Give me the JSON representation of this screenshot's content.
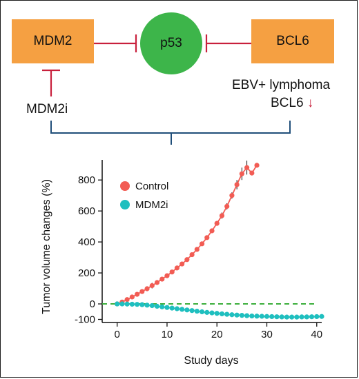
{
  "diagram": {
    "nodes": {
      "mdm2": "MDM2",
      "p53": "p53",
      "bcl6": "BCL6"
    },
    "labels": {
      "mdm2i": "MDM2i",
      "ebv": "EBV+ lymphoma",
      "bcl6_down": "BCL6",
      "down_arrow": "↓"
    },
    "colors": {
      "box": "#f5a042",
      "circle": "#3db54a",
      "inhibit": "#c8203c",
      "bracket": "#1f4e79"
    }
  },
  "chart_data": {
    "type": "line",
    "xlabel": "Study days",
    "ylabel": "Tumor volume changes (%)",
    "xlim": [
      -3,
      41
    ],
    "ylim": [
      -120,
      930
    ],
    "xticks": [
      0,
      10,
      20,
      30,
      40
    ],
    "yticks": [
      -100,
      0,
      200,
      400,
      600,
      800
    ],
    "legend_position": "top-left",
    "reference_line": {
      "y": 0,
      "style": "dashed",
      "color": "#3aae3a"
    },
    "series": [
      {
        "name": "Control",
        "color": "#f25c54",
        "x": [
          0,
          1,
          2,
          3,
          4,
          5,
          6,
          7,
          8,
          9,
          10,
          11,
          12,
          13,
          14,
          15,
          16,
          17,
          18,
          19,
          20,
          21,
          22,
          23,
          24,
          25,
          26,
          27,
          28
        ],
        "y": [
          0,
          12,
          28,
          45,
          62,
          80,
          98,
          118,
          138,
          160,
          182,
          206,
          232,
          258,
          286,
          318,
          352,
          388,
          428,
          472,
          520,
          570,
          630,
          700,
          770,
          840,
          880,
          845,
          895
        ],
        "error": [
          0,
          6,
          8,
          10,
          12,
          14,
          16,
          18,
          8,
          8,
          8,
          8,
          8,
          8,
          8,
          8,
          8,
          8,
          8,
          10,
          12,
          20,
          20,
          20,
          30,
          40,
          45,
          10,
          5
        ]
      },
      {
        "name": "MDM2i",
        "color": "#1fbfbf",
        "x": [
          0,
          1,
          2,
          3,
          4,
          5,
          6,
          7,
          8,
          9,
          10,
          11,
          12,
          13,
          14,
          15,
          16,
          17,
          18,
          19,
          20,
          21,
          22,
          23,
          24,
          25,
          26,
          27,
          28,
          29,
          30,
          31,
          32,
          33,
          34,
          35,
          36,
          37,
          38,
          39,
          40,
          41
        ],
        "y": [
          0,
          0,
          -1,
          -2,
          -3,
          -5,
          -8,
          -11,
          -15,
          -19,
          -23,
          -27,
          -31,
          -35,
          -39,
          -43,
          -47,
          -51,
          -55,
          -58,
          -61,
          -64,
          -67,
          -70,
          -72,
          -74,
          -76,
          -78,
          -79,
          -80,
          -81,
          -82,
          -83,
          -84,
          -85,
          -85,
          -85,
          -84,
          -84,
          -83,
          -82,
          -81
        ],
        "error": [
          0,
          2,
          2,
          2,
          2,
          2,
          2,
          2,
          2,
          2,
          2,
          2,
          2,
          2,
          2,
          2,
          2,
          2,
          2,
          2,
          2,
          2,
          2,
          2,
          2,
          2,
          2,
          2,
          2,
          2,
          2,
          2,
          2,
          2,
          2,
          2,
          10,
          12,
          12,
          14,
          14,
          12
        ]
      }
    ]
  }
}
